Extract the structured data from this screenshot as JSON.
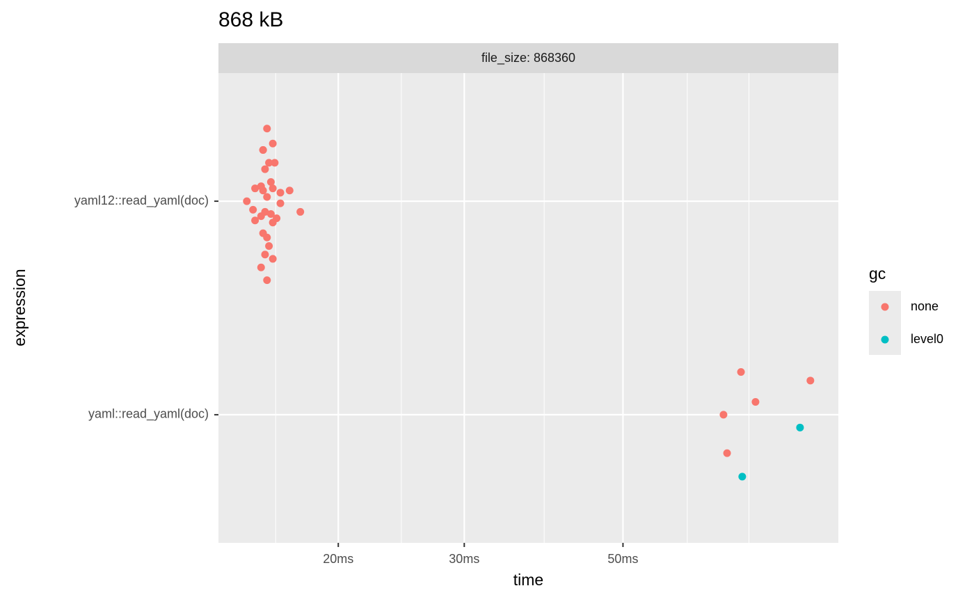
{
  "chart_data": {
    "type": "scatter",
    "title": "868 kB",
    "strip": "file_size: 868360",
    "x_label": "time",
    "y_label": "expression",
    "log_x": true,
    "grid": true,
    "xlim": [
      13.6,
      100
    ],
    "ylim": [
      0.4,
      2.6
    ],
    "xticks": [
      {
        "value": 20,
        "label": "20ms"
      },
      {
        "value": 30,
        "label": "30ms"
      },
      {
        "value": 50,
        "label": "50ms"
      }
    ],
    "xminor": [
      16.35,
      24.5,
      38.8,
      61.5,
      75.0
    ],
    "yticks": [
      {
        "value": 1,
        "label": "yaml::read_yaml(doc)"
      },
      {
        "value": 2,
        "label": "yaml12::read_yaml(doc)"
      }
    ],
    "legend_title": "gc",
    "legend": "right",
    "series": [
      {
        "name": "none",
        "color": "#F8766D",
        "x": [
          15.9,
          16.2,
          15.7,
          15.7,
          16.0,
          16.3,
          15.8,
          16.1,
          15.3,
          15.6,
          16.2,
          15.7,
          16.6,
          17.1,
          15.9,
          14.9,
          16.6,
          15.2,
          15.8,
          16.1,
          15.6,
          15.3,
          16.4,
          16.2,
          15.7,
          15.9,
          16.0,
          15.8,
          16.2,
          15.6,
          15.9,
          17.7,
          73.1,
          91.4,
          76.6,
          69.1,
          69.9
        ],
        "y": [
          2.34,
          2.27,
          2.24,
          2.24,
          2.18,
          2.18,
          2.15,
          2.09,
          2.06,
          2.07,
          2.06,
          2.05,
          2.04,
          2.05,
          2.02,
          2.0,
          1.99,
          1.96,
          1.95,
          1.94,
          1.93,
          1.91,
          1.92,
          1.9,
          1.85,
          1.83,
          1.79,
          1.75,
          1.73,
          1.69,
          1.63,
          1.95,
          1.2,
          1.16,
          1.06,
          1.0,
          0.82
        ]
      },
      {
        "name": "level0",
        "color": "#00BFC4",
        "x": [
          88.4,
          73.4
        ],
        "y": [
          0.94,
          0.71
        ]
      }
    ]
  }
}
